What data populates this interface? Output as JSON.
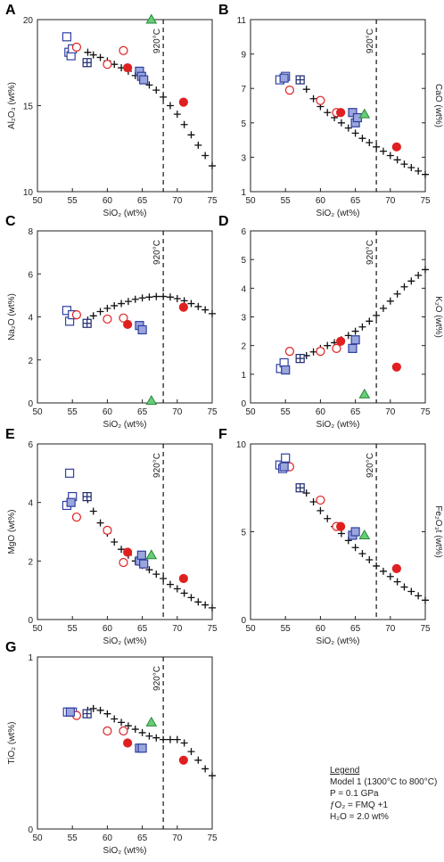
{
  "legend": {
    "title": "Legend",
    "lines": [
      "Model 1 (1300°C to 800°C)",
      "P = 0.1 GPa",
      "ƒO₂ = FMQ +1",
      "H₂O = 2.0 wt%"
    ]
  },
  "chart_data": [
    {
      "type": "scatter",
      "letter": "A",
      "ylabel": "Al₂O₃ (wt%)",
      "ylabel_side": "left",
      "xlabel": "SiO₂ (wt%)",
      "xlim": [
        50,
        75
      ],
      "ylim": [
        10,
        20
      ],
      "xticks": [
        50,
        55,
        60,
        65,
        70,
        75
      ],
      "yticks": [
        10,
        15,
        20
      ],
      "vline": {
        "x": 68,
        "label": "920°C"
      },
      "model": {
        "x": [
          57.2,
          58,
          59,
          60,
          61,
          62,
          63,
          64,
          65,
          66,
          67,
          68,
          69,
          70,
          71,
          72,
          73,
          74,
          75
        ],
        "y": [
          18.1,
          17.95,
          17.8,
          17.6,
          17.4,
          17.2,
          17.0,
          16.75,
          16.5,
          16.2,
          15.9,
          15.5,
          15.0,
          14.5,
          13.9,
          13.3,
          12.7,
          12.1,
          11.5
        ]
      },
      "series": [
        {
          "marker": "open-square",
          "points": [
            [
              54.2,
              19.0
            ],
            [
              54.5,
              18.1
            ],
            [
              54.8,
              17.9
            ],
            [
              55.0,
              18.3
            ]
          ]
        },
        {
          "marker": "square-plus",
          "points": [
            [
              57.1,
              17.5
            ]
          ]
        },
        {
          "marker": "open-circle",
          "points": [
            [
              55.6,
              18.4
            ],
            [
              60.0,
              17.4
            ],
            [
              62.3,
              18.2
            ]
          ]
        },
        {
          "marker": "filled-circle",
          "points": [
            [
              62.9,
              17.2
            ],
            [
              70.9,
              15.2
            ]
          ]
        },
        {
          "marker": "filled-square",
          "points": [
            [
              64.6,
              17.0
            ],
            [
              64.9,
              16.7
            ],
            [
              65.2,
              16.5
            ]
          ]
        },
        {
          "marker": "triangle",
          "points": [
            [
              66.3,
              20.0
            ]
          ]
        }
      ]
    },
    {
      "type": "scatter",
      "letter": "B",
      "ylabel": "CaO (wt%)",
      "ylabel_side": "right",
      "xlabel": "SiO₂ (wt%)",
      "xlim": [
        50,
        75
      ],
      "ylim": [
        1,
        11
      ],
      "xticks": [
        50,
        55,
        60,
        65,
        70,
        75
      ],
      "yticks": [
        1,
        3,
        5,
        7,
        9,
        11
      ],
      "vline": {
        "x": 68,
        "label": "920°C"
      },
      "model": {
        "x": [
          57.2,
          58,
          59,
          60,
          61,
          62,
          63,
          64,
          65,
          66,
          67,
          68,
          69,
          70,
          71,
          72,
          73,
          74,
          75
        ],
        "y": [
          7.5,
          6.95,
          6.4,
          5.95,
          5.6,
          5.3,
          5.0,
          4.7,
          4.4,
          4.1,
          3.85,
          3.6,
          3.35,
          3.1,
          2.85,
          2.6,
          2.4,
          2.2,
          2.0
        ]
      },
      "series": [
        {
          "marker": "open-square",
          "points": [
            [
              54.2,
              7.5
            ],
            [
              55.0,
              7.7
            ]
          ]
        },
        {
          "marker": "square-plus",
          "points": [
            [
              57.1,
              7.5
            ]
          ]
        },
        {
          "marker": "open-circle",
          "points": [
            [
              55.6,
              6.9
            ],
            [
              60.0,
              6.3
            ],
            [
              62.3,
              5.6
            ]
          ]
        },
        {
          "marker": "filled-circle",
          "points": [
            [
              62.9,
              5.6
            ],
            [
              70.9,
              3.6
            ]
          ]
        },
        {
          "marker": "filled-square",
          "points": [
            [
              54.8,
              7.6
            ],
            [
              64.6,
              5.6
            ],
            [
              65.0,
              5.0
            ],
            [
              65.3,
              5.3
            ]
          ]
        },
        {
          "marker": "triangle",
          "points": [
            [
              66.3,
              5.5
            ]
          ]
        }
      ]
    },
    {
      "type": "scatter",
      "letter": "C",
      "ylabel": "Na₂O (wt%)",
      "ylabel_side": "left",
      "xlabel": "SiO₂ (wt%)",
      "xlim": [
        50,
        75
      ],
      "ylim": [
        0,
        8
      ],
      "xticks": [
        50,
        55,
        60,
        65,
        70,
        75
      ],
      "yticks": [
        0,
        2,
        4,
        6,
        8
      ],
      "vline": {
        "x": 68,
        "label": "920°C"
      },
      "model": {
        "x": [
          57.2,
          58,
          59,
          60,
          61,
          62,
          63,
          64,
          65,
          66,
          67,
          68,
          69,
          70,
          71,
          72,
          73,
          74,
          75
        ],
        "y": [
          3.85,
          4.05,
          4.25,
          4.4,
          4.52,
          4.62,
          4.72,
          4.82,
          4.88,
          4.92,
          4.95,
          4.95,
          4.92,
          4.85,
          4.75,
          4.62,
          4.48,
          4.33,
          4.15
        ]
      },
      "series": [
        {
          "marker": "open-square",
          "points": [
            [
              54.2,
              4.3
            ],
            [
              54.6,
              3.8
            ],
            [
              55.0,
              4.1
            ]
          ]
        },
        {
          "marker": "square-plus",
          "points": [
            [
              57.1,
              3.7
            ]
          ]
        },
        {
          "marker": "open-circle",
          "points": [
            [
              55.6,
              4.1
            ],
            [
              60.0,
              3.9
            ],
            [
              62.3,
              3.95
            ]
          ]
        },
        {
          "marker": "filled-circle",
          "points": [
            [
              62.9,
              3.65
            ],
            [
              70.9,
              4.45
            ]
          ]
        },
        {
          "marker": "filled-square",
          "points": [
            [
              64.6,
              3.6
            ],
            [
              65.0,
              3.4
            ]
          ]
        },
        {
          "marker": "triangle",
          "points": [
            [
              66.3,
              0.1
            ]
          ]
        }
      ]
    },
    {
      "type": "scatter",
      "letter": "D",
      "ylabel": "K₂O (wt%)",
      "ylabel_side": "right",
      "xlabel": "SiO₂ (wt%)",
      "xlim": [
        50,
        75
      ],
      "ylim": [
        0,
        6
      ],
      "xticks": [
        50,
        55,
        60,
        65,
        70,
        75
      ],
      "yticks": [
        0,
        1,
        2,
        3,
        4,
        5,
        6
      ],
      "vline": {
        "x": 68,
        "label": "920°C"
      },
      "model": {
        "x": [
          57.2,
          58,
          59,
          60,
          61,
          62,
          63,
          64,
          65,
          66,
          67,
          68,
          69,
          70,
          71,
          72,
          73,
          74,
          75
        ],
        "y": [
          1.55,
          1.65,
          1.78,
          1.9,
          2.0,
          2.1,
          2.2,
          2.35,
          2.5,
          2.65,
          2.85,
          3.05,
          3.3,
          3.55,
          3.8,
          4.05,
          4.25,
          4.45,
          4.65
        ]
      },
      "series": [
        {
          "marker": "open-square",
          "points": [
            [
              54.3,
              1.2
            ],
            [
              54.8,
              1.4
            ]
          ]
        },
        {
          "marker": "square-plus",
          "points": [
            [
              57.1,
              1.55
            ]
          ]
        },
        {
          "marker": "open-circle",
          "points": [
            [
              55.6,
              1.8
            ],
            [
              60.0,
              1.8
            ],
            [
              62.3,
              1.9
            ]
          ]
        },
        {
          "marker": "filled-circle",
          "points": [
            [
              62.9,
              2.15
            ],
            [
              70.9,
              1.25
            ]
          ]
        },
        {
          "marker": "filled-square",
          "points": [
            [
              55.0,
              1.15
            ],
            [
              64.6,
              1.9
            ],
            [
              65.0,
              2.2
            ]
          ]
        },
        {
          "marker": "triangle",
          "points": [
            [
              66.3,
              0.3
            ]
          ]
        }
      ]
    },
    {
      "type": "scatter",
      "letter": "E",
      "ylabel": "MgO (wt%)",
      "ylabel_side": "left",
      "xlabel": "SiO₂ (wt%)",
      "xlim": [
        50,
        75
      ],
      "ylim": [
        0,
        6
      ],
      "xticks": [
        50,
        55,
        60,
        65,
        70,
        75
      ],
      "yticks": [
        0,
        2,
        4,
        6
      ],
      "vline": {
        "x": 68,
        "label": "920°C"
      },
      "model": {
        "x": [
          57.2,
          58,
          59,
          60,
          61,
          62,
          63,
          64,
          65,
          66,
          67,
          68,
          69,
          70,
          71,
          72,
          73,
          74,
          75
        ],
        "y": [
          4.1,
          3.7,
          3.3,
          2.95,
          2.65,
          2.4,
          2.2,
          2.0,
          1.85,
          1.7,
          1.55,
          1.4,
          1.2,
          1.05,
          0.9,
          0.75,
          0.6,
          0.5,
          0.4
        ]
      },
      "series": [
        {
          "marker": "open-square",
          "points": [
            [
              54.2,
              3.9
            ],
            [
              54.6,
              5.0
            ],
            [
              55.0,
              4.2
            ]
          ]
        },
        {
          "marker": "square-plus",
          "points": [
            [
              57.1,
              4.2
            ]
          ]
        },
        {
          "marker": "open-circle",
          "points": [
            [
              55.6,
              3.5
            ],
            [
              60.0,
              3.05
            ],
            [
              62.3,
              1.95
            ]
          ]
        },
        {
          "marker": "filled-circle",
          "points": [
            [
              62.9,
              2.3
            ],
            [
              70.9,
              1.4
            ]
          ]
        },
        {
          "marker": "filled-square",
          "points": [
            [
              54.8,
              4.0
            ],
            [
              64.6,
              2.0
            ],
            [
              64.9,
              2.2
            ],
            [
              65.2,
              1.9
            ]
          ]
        },
        {
          "marker": "triangle",
          "points": [
            [
              66.3,
              2.2
            ]
          ]
        }
      ]
    },
    {
      "type": "scatter",
      "letter": "F",
      "ylabel": "Fe₂O₃t (wt%)",
      "ylabel_side": "right",
      "xlabel": "SiO₂ (wt%)",
      "xlim": [
        50,
        75
      ],
      "ylim": [
        0,
        10
      ],
      "xticks": [
        50,
        55,
        60,
        65,
        70,
        75
      ],
      "yticks": [
        0,
        5,
        10
      ],
      "vline": {
        "x": 68,
        "label": "920°C"
      },
      "model": {
        "x": [
          57.2,
          58,
          59,
          60,
          61,
          62,
          63,
          64,
          65,
          66,
          67,
          68,
          69,
          70,
          71,
          72,
          73,
          74,
          75
        ],
        "y": [
          7.5,
          7.2,
          6.7,
          6.2,
          5.75,
          5.3,
          4.9,
          4.5,
          4.1,
          3.75,
          3.4,
          3.05,
          2.75,
          2.45,
          2.15,
          1.85,
          1.6,
          1.35,
          1.1
        ]
      },
      "series": [
        {
          "marker": "open-square",
          "points": [
            [
              54.2,
              8.8
            ],
            [
              54.6,
              8.6
            ],
            [
              55.0,
              9.2
            ]
          ]
        },
        {
          "marker": "square-plus",
          "points": [
            [
              57.1,
              7.5
            ]
          ]
        },
        {
          "marker": "open-circle",
          "points": [
            [
              55.6,
              8.7
            ],
            [
              60.0,
              6.8
            ],
            [
              62.3,
              5.3
            ]
          ]
        },
        {
          "marker": "filled-circle",
          "points": [
            [
              62.9,
              5.3
            ],
            [
              70.9,
              2.9
            ]
          ]
        },
        {
          "marker": "filled-square",
          "points": [
            [
              54.8,
              8.7
            ],
            [
              64.6,
              4.8
            ],
            [
              65.0,
              5.0
            ]
          ]
        },
        {
          "marker": "triangle",
          "points": [
            [
              66.3,
              4.8
            ]
          ]
        }
      ]
    },
    {
      "type": "scatter",
      "letter": "G",
      "ylabel": "TiO₂ (wt%)",
      "ylabel_side": "left",
      "xlabel": "SiO₂ (wt%)",
      "xlim": [
        50,
        75
      ],
      "ylim": [
        0,
        1
      ],
      "xticks": [
        50,
        55,
        60,
        65,
        70,
        75
      ],
      "yticks": [
        0,
        1
      ],
      "vline": {
        "x": 68,
        "label": "920°C"
      },
      "model": {
        "x": [
          57.2,
          58,
          59,
          60,
          61,
          62,
          63,
          64,
          65,
          66,
          67,
          68,
          69,
          70,
          71,
          72,
          73,
          74,
          75
        ],
        "y": [
          0.69,
          0.7,
          0.69,
          0.67,
          0.64,
          0.62,
          0.6,
          0.58,
          0.56,
          0.54,
          0.53,
          0.52,
          0.52,
          0.52,
          0.5,
          0.45,
          0.4,
          0.35,
          0.31
        ]
      },
      "series": [
        {
          "marker": "open-square",
          "points": [
            [
              54.3,
              0.68
            ],
            [
              55.0,
              0.68
            ]
          ]
        },
        {
          "marker": "square-plus",
          "points": [
            [
              57.1,
              0.67
            ]
          ]
        },
        {
          "marker": "open-circle",
          "points": [
            [
              55.6,
              0.66
            ],
            [
              60.0,
              0.57
            ],
            [
              62.3,
              0.57
            ]
          ]
        },
        {
          "marker": "filled-circle",
          "points": [
            [
              62.9,
              0.5
            ],
            [
              70.9,
              0.4
            ]
          ]
        },
        {
          "marker": "filled-square",
          "points": [
            [
              54.7,
              0.68
            ],
            [
              64.6,
              0.47
            ],
            [
              65.0,
              0.47
            ]
          ]
        },
        {
          "marker": "triangle",
          "points": [
            [
              66.3,
              0.62
            ]
          ]
        }
      ]
    }
  ]
}
